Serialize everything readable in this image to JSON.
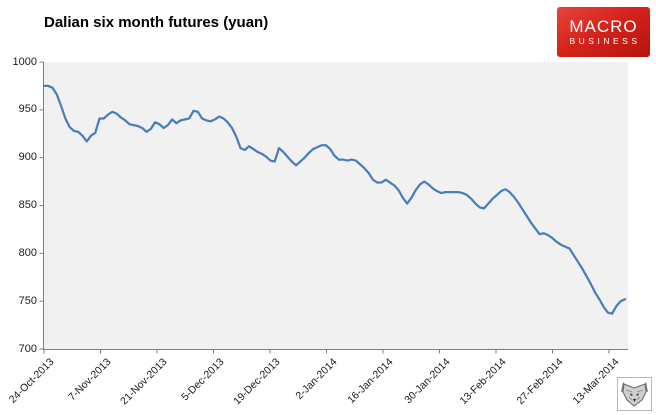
{
  "title": "Dalian six month futures (yuan)",
  "logo": {
    "line1": "MACRO",
    "line2": "BUSINESS",
    "bg_color_top": "#e6453a",
    "bg_color_bottom": "#b5130e",
    "text_color": "#ffffff"
  },
  "watermark": {
    "description": "wolf-sketch-thumbnail"
  },
  "chart_data": {
    "type": "line",
    "title": "Dalian six month futures (yuan)",
    "xlabel": "",
    "ylabel": "",
    "ylim": [
      700,
      1000
    ],
    "y_ticks": [
      1000,
      950,
      900,
      850,
      800,
      750,
      700
    ],
    "x_tick_labels": [
      "24-Oct-2013",
      "7-Nov-2013",
      "21-Nov-2013",
      "5-Dec-2013",
      "19-Dec-2013",
      "2-Jan-2014",
      "16-Jan-2014",
      "30-Jan-2014",
      "13-Feb-2014",
      "27-Feb-2014",
      "13-Mar-2014"
    ],
    "grid": "off",
    "legend": "none",
    "plot_bg": "#f1f1f1",
    "axis_color": "#7f7f7f",
    "line_color": "#4a7ebb",
    "series": [
      {
        "name": "Dalian six month futures (yuan)",
        "values": [
          975,
          975,
          973,
          966,
          954,
          941,
          932,
          928,
          927,
          923,
          917,
          923,
          926,
          941,
          941,
          945,
          948,
          946,
          942,
          939,
          935,
          934,
          933,
          931,
          927,
          930,
          937,
          935,
          931,
          934,
          940,
          936,
          939,
          940,
          941,
          949,
          948,
          941,
          939,
          938,
          940,
          943,
          941,
          937,
          931,
          922,
          910,
          908,
          912,
          909,
          906,
          904,
          901,
          897,
          896,
          910,
          906,
          901,
          896,
          892,
          896,
          900,
          905,
          909,
          911,
          913,
          913,
          909,
          902,
          898,
          898,
          897,
          898,
          897,
          893,
          889,
          884,
          877,
          874,
          874,
          877,
          874,
          871,
          866,
          858,
          852,
          858,
          866,
          872,
          875,
          872,
          868,
          865,
          863,
          864,
          864,
          864,
          864,
          863,
          861,
          857,
          852,
          848,
          847,
          852,
          857,
          861,
          865,
          867,
          864,
          859,
          853,
          846,
          839,
          832,
          826,
          820,
          821,
          819,
          816,
          812,
          809,
          807,
          805,
          798,
          791,
          784,
          776,
          768,
          759,
          752,
          744,
          738,
          737,
          745,
          750,
          752
        ]
      }
    ]
  }
}
